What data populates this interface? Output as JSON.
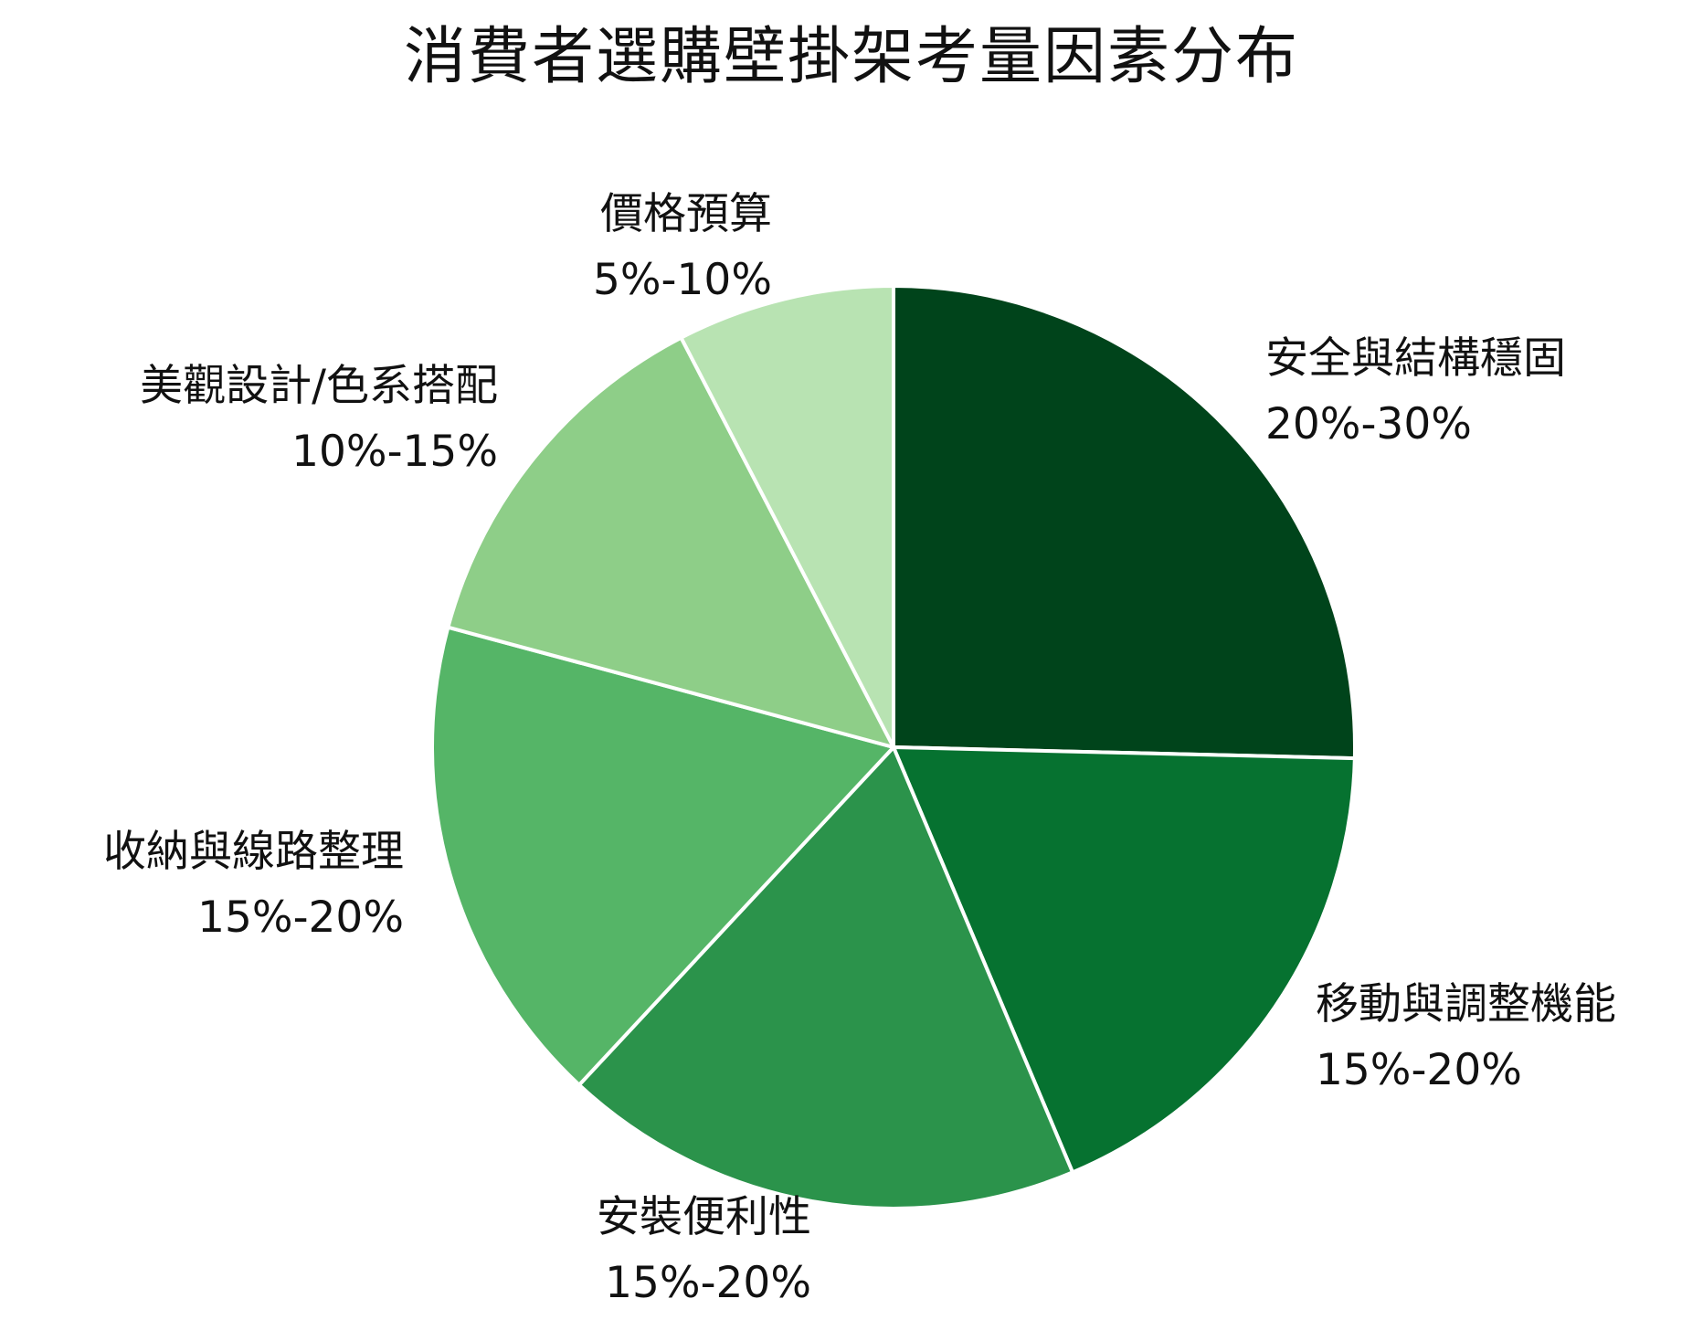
{
  "chart_data": {
    "type": "pie",
    "title": "消費者選購壁掛架考量因素分布",
    "start_angle_deg": 0,
    "direction": "clockwise",
    "slices": [
      {
        "label": "安全與結構穩固",
        "range": "20%-30%",
        "value": 25,
        "color": "#00441b"
      },
      {
        "label": "移動與調整機能",
        "range": "15%-20%",
        "value": 18,
        "color": "#067230"
      },
      {
        "label": "安裝便利性",
        "range": "15%-20%",
        "value": 18,
        "color": "#2b934b"
      },
      {
        "label": "收納與線路整理",
        "range": "15%-20%",
        "value": 17,
        "color": "#55b567"
      },
      {
        "label": "美觀設計/色系搭配",
        "range": "10%-15%",
        "value": 13,
        "color": "#8ece88"
      },
      {
        "label": "價格預算",
        "range": "5%-10%",
        "value": 7.5,
        "color": "#b8e3b2"
      }
    ],
    "slice_border_color": "#ffffff"
  }
}
